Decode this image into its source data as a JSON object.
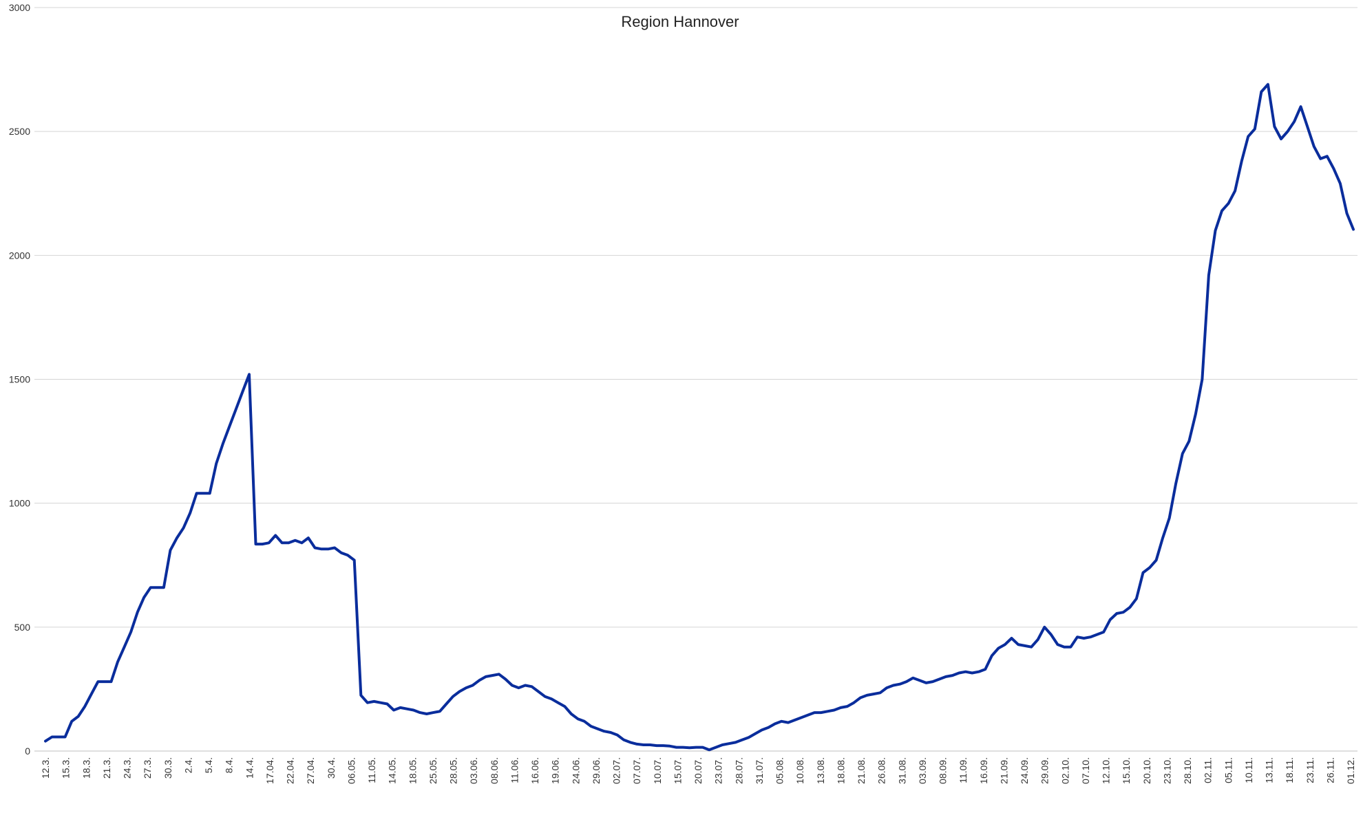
{
  "chart_data": {
    "type": "line",
    "title": "Region Hannover",
    "xlabel": "",
    "ylabel": "",
    "ylim": [
      0,
      3000
    ],
    "yticks": [
      0,
      500,
      1000,
      1500,
      2000,
      2500,
      3000
    ],
    "grid": true,
    "legend": "none",
    "color": "#0a2d9c",
    "xtick_labels": [
      "12.3.",
      "15.3.",
      "18.3.",
      "21.3.",
      "24.3.",
      "27.3.",
      "30.3.",
      "2.4.",
      "5.4.",
      "8.4.",
      "14.4.",
      "17.04.",
      "22.04.",
      "27.04.",
      "30.4.",
      "06.05.",
      "11.05.",
      "14.05.",
      "18.05.",
      "25.05.",
      "28.05.",
      "03.06.",
      "08.06.",
      "11.06.",
      "16.06.",
      "19.06.",
      "24.06.",
      "29.06.",
      "02.07.",
      "07.07.",
      "10.07.",
      "15.07.",
      "20.07.",
      "23.07.",
      "28.07.",
      "31.07.",
      "05.08.",
      "10.08.",
      "13.08.",
      "18.08.",
      "21.08.",
      "26.08.",
      "31.08.",
      "03.09.",
      "08.09.",
      "11.09.",
      "16.09.",
      "21.09.",
      "24.09.",
      "29.09.",
      "02.10.",
      "07.10.",
      "12.10.",
      "15.10.",
      "20.10.",
      "23.10.",
      "28.10.",
      "02.11.",
      "05.11.",
      "10.11.",
      "13.11.",
      "18.11.",
      "23.11.",
      "26.11.",
      "01.12."
    ],
    "series": [
      {
        "values": [
          40,
          57,
          57,
          57,
          120,
          140,
          180,
          230,
          280,
          280,
          280,
          360,
          420,
          480,
          560,
          620,
          660,
          660,
          660,
          810,
          860,
          900,
          960,
          1040,
          1040,
          1040,
          1160,
          1240,
          1310,
          1380,
          1450,
          1520,
          835,
          835,
          840,
          870,
          840,
          840,
          850,
          840,
          860,
          820,
          815,
          815,
          820,
          800,
          790,
          770,
          225,
          195,
          200,
          195,
          190,
          165,
          175,
          170,
          165,
          155,
          150,
          155,
          160,
          190,
          220,
          240,
          255,
          265,
          285,
          300,
          305,
          310,
          290,
          265,
          255,
          265,
          260,
          240,
          220,
          210,
          195,
          180,
          150,
          130,
          120,
          100,
          90,
          80,
          75,
          65,
          45,
          35,
          28,
          25,
          25,
          22,
          22,
          20,
          15,
          15,
          13,
          15,
          15,
          5,
          15,
          25,
          30,
          35,
          45,
          55,
          70,
          85,
          95,
          110,
          120,
          115,
          125,
          135,
          145,
          155,
          155,
          160,
          165,
          175,
          180,
          195,
          215,
          225,
          230,
          235,
          255,
          265,
          270,
          280,
          295,
          285,
          275,
          280,
          290,
          300,
          305,
          315,
          320,
          315,
          320,
          330,
          385,
          415,
          430,
          455,
          430,
          425,
          420,
          450,
          500,
          470,
          430,
          420,
          420,
          460,
          455,
          460,
          470,
          480,
          530,
          555,
          560,
          580,
          615,
          720,
          740,
          770,
          860,
          940,
          1080,
          1200,
          1250,
          1360,
          1500,
          1920,
          2100,
          2180,
          2210,
          2260,
          2380,
          2480,
          2510,
          2660,
          2690,
          2520,
          2470,
          2500,
          2540,
          2600,
          2520,
          2440,
          2390,
          2400,
          2350,
          2290,
          2170,
          2105
        ]
      }
    ]
  }
}
